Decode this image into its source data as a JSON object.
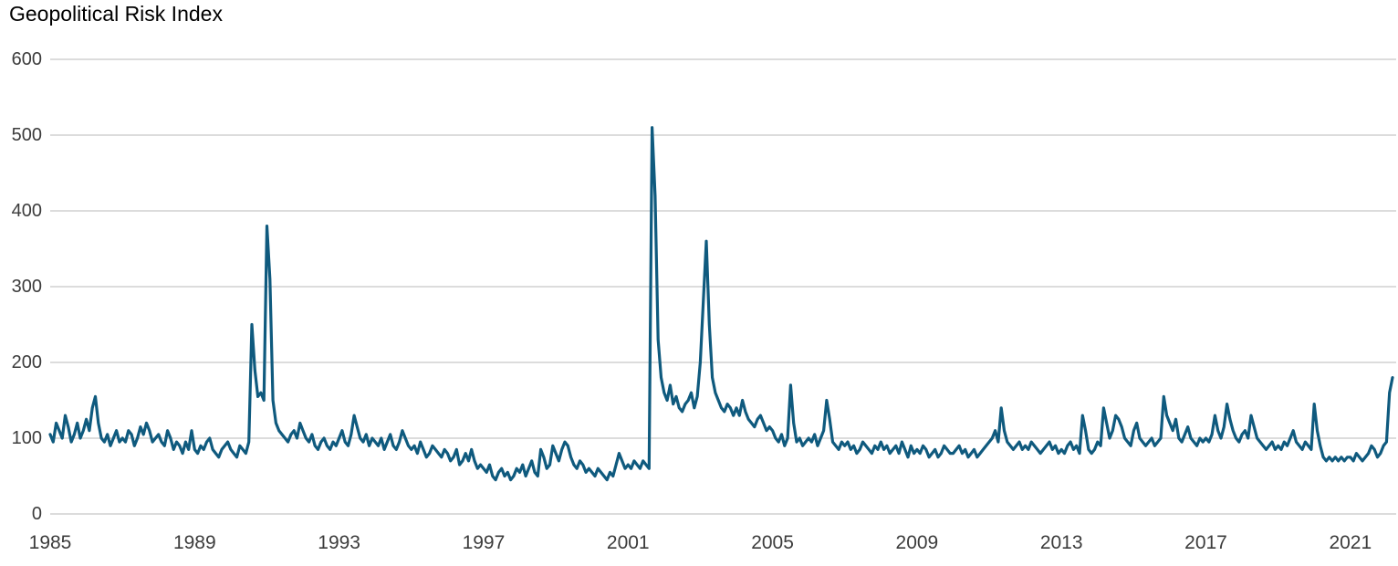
{
  "page": {
    "title": "Geopolitical Risk Index"
  },
  "chart_data": {
    "type": "line",
    "title": "Geopolitical Risk Index",
    "series_name": "Geopolitical Risk Index (monthly)",
    "start_year": 1985,
    "frequency": "monthly",
    "grid": true,
    "legend_position": "none",
    "ylim": [
      0,
      600
    ],
    "y_ticks": [
      0,
      100,
      200,
      300,
      400,
      500,
      600
    ],
    "x_tick_years": [
      1985,
      1989,
      1993,
      1997,
      2001,
      2005,
      2009,
      2013,
      2017,
      2021
    ],
    "x_tick_labels": [
      "1985",
      "1989",
      "1993",
      "1997",
      "2001",
      "2005",
      "2009",
      "2013",
      "2017",
      "2021"
    ],
    "line_color": "#0f5a7e",
    "grid_color": "#c7c7c7",
    "axis_label_color": "#3c3c3c",
    "values": [
      105,
      95,
      120,
      110,
      100,
      130,
      115,
      95,
      105,
      120,
      100,
      110,
      125,
      110,
      140,
      155,
      120,
      100,
      95,
      105,
      90,
      100,
      110,
      95,
      100,
      95,
      110,
      105,
      90,
      100,
      115,
      105,
      120,
      110,
      95,
      100,
      105,
      95,
      90,
      110,
      100,
      85,
      95,
      90,
      80,
      95,
      85,
      110,
      85,
      80,
      90,
      85,
      95,
      100,
      85,
      80,
      75,
      85,
      90,
      95,
      85,
      80,
      75,
      90,
      85,
      80,
      95,
      250,
      190,
      155,
      160,
      150,
      380,
      310,
      150,
      120,
      110,
      105,
      100,
      95,
      105,
      110,
      100,
      120,
      110,
      100,
      95,
      105,
      90,
      85,
      95,
      100,
      90,
      85,
      95,
      90,
      100,
      110,
      95,
      90,
      105,
      130,
      115,
      100,
      95,
      105,
      90,
      100,
      95,
      90,
      100,
      85,
      95,
      105,
      90,
      85,
      95,
      110,
      100,
      90,
      85,
      90,
      80,
      95,
      85,
      75,
      80,
      90,
      85,
      80,
      75,
      85,
      80,
      70,
      75,
      85,
      65,
      70,
      80,
      70,
      85,
      70,
      60,
      65,
      60,
      55,
      65,
      50,
      45,
      55,
      60,
      50,
      55,
      45,
      50,
      60,
      55,
      65,
      50,
      60,
      70,
      55,
      50,
      85,
      75,
      60,
      65,
      90,
      80,
      70,
      85,
      95,
      90,
      75,
      65,
      60,
      70,
      65,
      55,
      60,
      55,
      50,
      60,
      55,
      50,
      45,
      55,
      50,
      65,
      80,
      70,
      60,
      65,
      60,
      70,
      65,
      60,
      70,
      65,
      60,
      510,
      420,
      230,
      180,
      160,
      150,
      170,
      145,
      155,
      140,
      135,
      145,
      150,
      160,
      140,
      155,
      200,
      280,
      360,
      250,
      180,
      160,
      150,
      140,
      135,
      145,
      140,
      130,
      140,
      130,
      150,
      135,
      125,
      120,
      115,
      125,
      130,
      120,
      110,
      115,
      110,
      100,
      95,
      105,
      90,
      100,
      170,
      120,
      95,
      100,
      90,
      95,
      100,
      95,
      105,
      90,
      100,
      110,
      150,
      125,
      95,
      90,
      85,
      95,
      90,
      95,
      85,
      90,
      80,
      85,
      95,
      90,
      85,
      80,
      90,
      85,
      95,
      85,
      90,
      80,
      85,
      90,
      80,
      95,
      85,
      75,
      90,
      80,
      85,
      80,
      90,
      85,
      75,
      80,
      85,
      75,
      80,
      90,
      85,
      80,
      80,
      85,
      90,
      80,
      85,
      75,
      80,
      85,
      75,
      80,
      85,
      90,
      95,
      100,
      110,
      95,
      140,
      110,
      95,
      90,
      85,
      90,
      95,
      85,
      90,
      85,
      95,
      90,
      85,
      80,
      85,
      90,
      95,
      85,
      90,
      80,
      85,
      80,
      90,
      95,
      85,
      90,
      80,
      130,
      110,
      85,
      80,
      85,
      95,
      90,
      140,
      120,
      100,
      110,
      130,
      125,
      115,
      100,
      95,
      90,
      110,
      120,
      100,
      95,
      90,
      95,
      100,
      90,
      95,
      100,
      155,
      130,
      120,
      110,
      125,
      100,
      95,
      105,
      115,
      100,
      95,
      90,
      100,
      95,
      100,
      95,
      105,
      130,
      110,
      100,
      115,
      145,
      125,
      110,
      100,
      95,
      105,
      110,
      100,
      130,
      115,
      100,
      95,
      90,
      85,
      90,
      95,
      85,
      90,
      85,
      95,
      90,
      100,
      110,
      95,
      90,
      85,
      95,
      90,
      85,
      145,
      110,
      90,
      75,
      70,
      75,
      70,
      75,
      70,
      75,
      70,
      75,
      75,
      70,
      80,
      75,
      70,
      75,
      80,
      90,
      85,
      75,
      80,
      90,
      95,
      160,
      180
    ]
  }
}
